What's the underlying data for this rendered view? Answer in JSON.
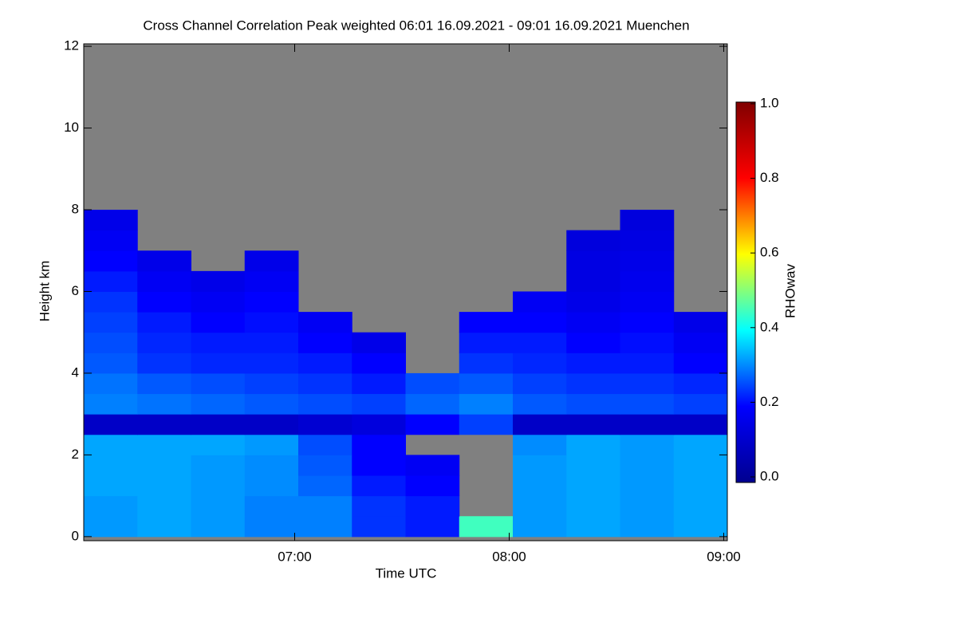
{
  "chart_data": {
    "type": "heatmap",
    "title": "Cross Channel Correlation Peak weighted   06:01 16.09.2021 - 09:01 16.09.2021 Muenchen",
    "x_label": "Time UTC",
    "y_label": "Height km",
    "colorbar_label": "RHOwav",
    "xlim": [
      6.0167,
      9.0167
    ],
    "xticks": [
      {
        "value": 7,
        "label": "07:00"
      },
      {
        "value": 8,
        "label": "08:00"
      },
      {
        "value": 9,
        "label": "09:00"
      }
    ],
    "ylim": [
      -0.1,
      12.06
    ],
    "yticks": [
      0,
      2,
      4,
      6,
      8,
      10,
      12
    ],
    "zlim": [
      0,
      1
    ],
    "zticks": [
      {
        "value": 0,
        "label": "0.0"
      },
      {
        "value": 0.2,
        "label": "0.2"
      },
      {
        "value": 0.4,
        "label": "0.4"
      },
      {
        "value": 0.6,
        "label": "0.6"
      },
      {
        "value": 0.8,
        "label": "0.8"
      },
      {
        "value": 1,
        "label": "1.0"
      }
    ],
    "colormap": [
      "#00008f",
      "#0000ff",
      "#00ffff",
      "#ffff00",
      "#ff0000",
      "#800000"
    ],
    "missing_color": "#808080",
    "x_edges": [
      6.0167,
      6.2667,
      6.5167,
      6.7667,
      7.0167,
      7.2667,
      7.5167,
      7.7667,
      8.0167,
      8.2667,
      8.5167,
      8.7667,
      9.0167
    ],
    "y_edges": [
      0,
      0.5,
      1,
      1.5,
      2,
      2.5,
      3,
      3.5,
      4,
      4.5,
      5,
      5.5,
      6,
      6.5,
      7,
      7.5,
      8,
      8.5,
      9,
      9.5,
      10,
      10.5,
      11,
      11.5,
      12
    ],
    "values": [
      [
        0.32,
        0.33,
        0.32,
        0.3,
        0.3,
        0.24,
        0.22,
        0.45,
        0.32,
        0.33,
        0.32,
        0.33
      ],
      [
        0.32,
        0.33,
        0.32,
        0.3,
        0.3,
        0.24,
        0.22,
        null,
        0.32,
        0.33,
        0.32,
        0.33
      ],
      [
        0.33,
        0.33,
        0.32,
        0.31,
        0.28,
        0.22,
        0.2,
        null,
        0.32,
        0.33,
        0.32,
        0.33
      ],
      [
        0.33,
        0.33,
        0.32,
        0.31,
        0.27,
        0.2,
        0.18,
        null,
        0.32,
        0.33,
        0.32,
        0.33
      ],
      [
        0.33,
        0.33,
        0.33,
        0.32,
        0.26,
        0.2,
        null,
        null,
        0.31,
        0.33,
        0.32,
        0.33
      ],
      [
        0.1,
        0.1,
        0.1,
        0.1,
        0.12,
        0.14,
        0.2,
        0.25,
        0.1,
        0.1,
        0.1,
        0.1
      ],
      [
        0.3,
        0.29,
        0.28,
        0.27,
        0.26,
        0.25,
        0.28,
        0.3,
        0.27,
        0.26,
        0.26,
        0.25
      ],
      [
        0.29,
        0.27,
        0.26,
        0.25,
        0.24,
        0.22,
        0.26,
        0.27,
        0.25,
        0.24,
        0.24,
        0.23
      ],
      [
        0.27,
        0.24,
        0.23,
        0.23,
        0.22,
        0.2,
        null,
        0.24,
        0.23,
        0.22,
        0.22,
        0.2
      ],
      [
        0.26,
        0.23,
        0.22,
        0.22,
        0.2,
        0.16,
        null,
        0.22,
        0.22,
        0.2,
        0.21,
        0.18
      ],
      [
        0.25,
        0.22,
        0.2,
        0.21,
        0.18,
        null,
        null,
        0.2,
        0.2,
        0.18,
        0.2,
        0.16
      ],
      [
        0.24,
        0.2,
        0.18,
        0.2,
        null,
        null,
        null,
        null,
        0.18,
        0.16,
        0.18,
        null
      ],
      [
        0.22,
        0.18,
        0.16,
        0.18,
        null,
        null,
        null,
        null,
        null,
        0.15,
        0.17,
        null
      ],
      [
        0.2,
        0.16,
        null,
        0.16,
        null,
        null,
        null,
        null,
        null,
        0.15,
        0.16,
        null
      ],
      [
        0.18,
        null,
        null,
        null,
        null,
        null,
        null,
        null,
        null,
        0.14,
        0.15,
        null
      ],
      [
        0.16,
        null,
        null,
        null,
        null,
        null,
        null,
        null,
        null,
        null,
        0.14,
        null
      ],
      [
        null,
        null,
        null,
        null,
        null,
        null,
        null,
        null,
        null,
        null,
        null,
        null
      ],
      [
        null,
        null,
        null,
        null,
        null,
        null,
        null,
        null,
        null,
        null,
        null,
        null
      ],
      [
        null,
        null,
        null,
        null,
        null,
        null,
        null,
        null,
        null,
        null,
        null,
        null
      ],
      [
        null,
        null,
        null,
        null,
        null,
        null,
        null,
        null,
        null,
        null,
        null,
        null
      ],
      [
        null,
        null,
        null,
        null,
        null,
        null,
        null,
        null,
        null,
        null,
        null,
        null
      ],
      [
        null,
        null,
        null,
        null,
        null,
        null,
        null,
        null,
        null,
        null,
        null,
        null
      ],
      [
        null,
        null,
        null,
        null,
        null,
        null,
        null,
        null,
        null,
        null,
        null,
        null
      ],
      [
        null,
        null,
        null,
        null,
        null,
        null,
        null,
        null,
        null,
        null,
        null,
        null
      ]
    ]
  }
}
